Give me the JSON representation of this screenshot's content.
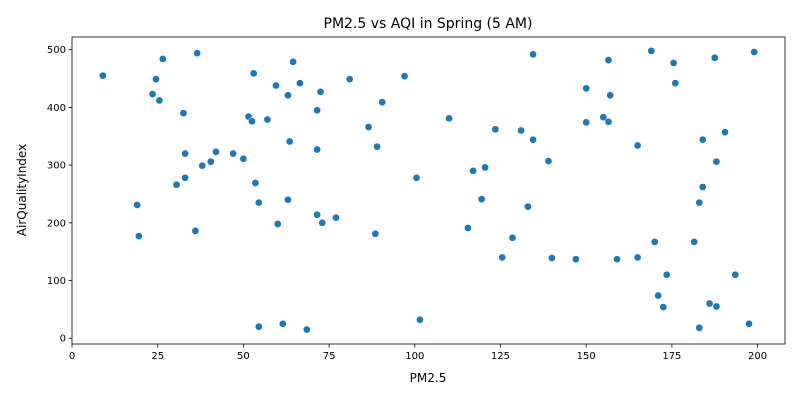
{
  "chart_data": {
    "type": "scatter",
    "title": "PM2.5 vs AQI in Spring (5 AM)",
    "xlabel": "PM2.5",
    "ylabel": "AirQualityIndex",
    "xlim": [
      0,
      208
    ],
    "ylim": [
      -10,
      522
    ],
    "xticks": [
      0,
      25,
      50,
      75,
      100,
      125,
      150,
      175,
      200
    ],
    "yticks": [
      0,
      100,
      200,
      300,
      400,
      500
    ],
    "grid": false,
    "marker_color": "#1f77b4",
    "points": [
      {
        "x": 9,
        "y": 455
      },
      {
        "x": 19,
        "y": 231
      },
      {
        "x": 19.5,
        "y": 177
      },
      {
        "x": 23.5,
        "y": 423
      },
      {
        "x": 24.5,
        "y": 449
      },
      {
        "x": 25.5,
        "y": 412
      },
      {
        "x": 26.5,
        "y": 484
      },
      {
        "x": 30.5,
        "y": 266
      },
      {
        "x": 32.5,
        "y": 390
      },
      {
        "x": 33,
        "y": 320
      },
      {
        "x": 33,
        "y": 278
      },
      {
        "x": 36,
        "y": 186
      },
      {
        "x": 36.5,
        "y": 494
      },
      {
        "x": 38,
        "y": 299
      },
      {
        "x": 40.5,
        "y": 306
      },
      {
        "x": 42,
        "y": 323
      },
      {
        "x": 47,
        "y": 320
      },
      {
        "x": 50,
        "y": 311
      },
      {
        "x": 51.5,
        "y": 384
      },
      {
        "x": 52.5,
        "y": 376
      },
      {
        "x": 53,
        "y": 459
      },
      {
        "x": 53.5,
        "y": 269
      },
      {
        "x": 54.5,
        "y": 235
      },
      {
        "x": 54.5,
        "y": 20
      },
      {
        "x": 57,
        "y": 379
      },
      {
        "x": 59.5,
        "y": 438
      },
      {
        "x": 60,
        "y": 198
      },
      {
        "x": 61.5,
        "y": 25
      },
      {
        "x": 63,
        "y": 421
      },
      {
        "x": 63,
        "y": 240
      },
      {
        "x": 63.5,
        "y": 341
      },
      {
        "x": 64.5,
        "y": 479
      },
      {
        "x": 66.5,
        "y": 442
      },
      {
        "x": 68.5,
        "y": 15
      },
      {
        "x": 71.5,
        "y": 395
      },
      {
        "x": 71.5,
        "y": 327
      },
      {
        "x": 71.5,
        "y": 214
      },
      {
        "x": 72.5,
        "y": 427
      },
      {
        "x": 73,
        "y": 200
      },
      {
        "x": 77,
        "y": 209
      },
      {
        "x": 81,
        "y": 449
      },
      {
        "x": 86.5,
        "y": 366
      },
      {
        "x": 88.5,
        "y": 181
      },
      {
        "x": 89,
        "y": 332
      },
      {
        "x": 90.5,
        "y": 409
      },
      {
        "x": 97,
        "y": 454
      },
      {
        "x": 100.5,
        "y": 278
      },
      {
        "x": 101.5,
        "y": 32
      },
      {
        "x": 110,
        "y": 381
      },
      {
        "x": 115.5,
        "y": 191
      },
      {
        "x": 117,
        "y": 290
      },
      {
        "x": 119.5,
        "y": 241
      },
      {
        "x": 120.5,
        "y": 296
      },
      {
        "x": 123.5,
        "y": 362
      },
      {
        "x": 125.5,
        "y": 140
      },
      {
        "x": 128.5,
        "y": 174
      },
      {
        "x": 131,
        "y": 360
      },
      {
        "x": 133,
        "y": 228
      },
      {
        "x": 134.5,
        "y": 492
      },
      {
        "x": 134.5,
        "y": 344
      },
      {
        "x": 139,
        "y": 307
      },
      {
        "x": 140,
        "y": 139
      },
      {
        "x": 147,
        "y": 137
      },
      {
        "x": 150,
        "y": 433
      },
      {
        "x": 150,
        "y": 374
      },
      {
        "x": 155,
        "y": 383
      },
      {
        "x": 156.5,
        "y": 482
      },
      {
        "x": 157,
        "y": 421
      },
      {
        "x": 156.5,
        "y": 375
      },
      {
        "x": 159,
        "y": 137
      },
      {
        "x": 165,
        "y": 334
      },
      {
        "x": 165,
        "y": 140
      },
      {
        "x": 169,
        "y": 498
      },
      {
        "x": 170,
        "y": 167
      },
      {
        "x": 171,
        "y": 74
      },
      {
        "x": 172.5,
        "y": 54
      },
      {
        "x": 173.5,
        "y": 110
      },
      {
        "x": 175.5,
        "y": 477
      },
      {
        "x": 176,
        "y": 442
      },
      {
        "x": 181.5,
        "y": 167
      },
      {
        "x": 183,
        "y": 235
      },
      {
        "x": 183,
        "y": 18
      },
      {
        "x": 184,
        "y": 262
      },
      {
        "x": 184,
        "y": 344
      },
      {
        "x": 186,
        "y": 60
      },
      {
        "x": 187.5,
        "y": 486
      },
      {
        "x": 188,
        "y": 306
      },
      {
        "x": 188,
        "y": 55
      },
      {
        "x": 190.5,
        "y": 357
      },
      {
        "x": 193.5,
        "y": 110
      },
      {
        "x": 197.5,
        "y": 25
      },
      {
        "x": 199,
        "y": 496
      }
    ]
  }
}
